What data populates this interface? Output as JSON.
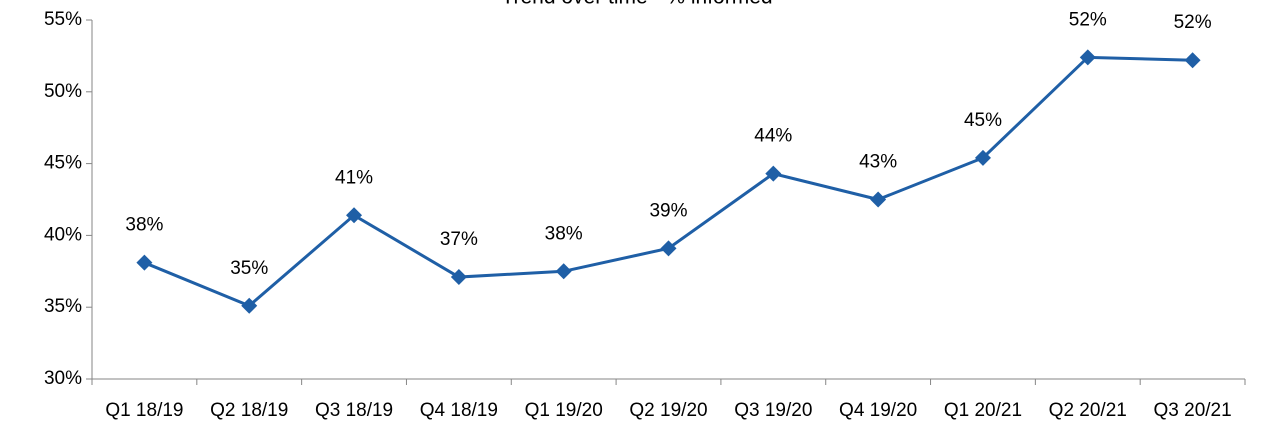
{
  "chart_data": {
    "type": "line",
    "title": "Trend over time - % informed",
    "categories": [
      "Q1 18/19",
      "Q2 18/19",
      "Q3 18/19",
      "Q4 18/19",
      "Q1 19/20",
      "Q2 19/20",
      "Q3 19/20",
      "Q4 19/20",
      "Q1 20/21",
      "Q2 20/21",
      "Q3 20/21"
    ],
    "series": [
      {
        "name": "% informed",
        "color": "#1f5fa6",
        "values": [
          38.1,
          35.1,
          41.4,
          37.1,
          37.5,
          39.1,
          44.3,
          42.5,
          45.4,
          52.4,
          52.2
        ],
        "value_labels": [
          "38%",
          "35%",
          "41%",
          "37%",
          "38%",
          "39%",
          "44%",
          "43%",
          "45%",
          "52%",
          "52%"
        ]
      }
    ],
    "ylim": [
      30,
      55
    ],
    "yticks": [
      {
        "value": 30,
        "label": "30%"
      },
      {
        "value": 35,
        "label": "35%"
      },
      {
        "value": 40,
        "label": "40%"
      },
      {
        "value": 45,
        "label": "45%"
      },
      {
        "value": 50,
        "label": "50%"
      },
      {
        "value": 55,
        "label": "55%"
      }
    ],
    "grid": false
  }
}
